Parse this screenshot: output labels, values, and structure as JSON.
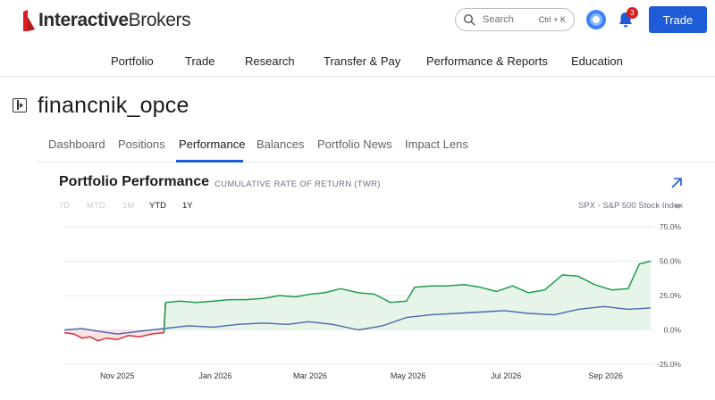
{
  "brand": {
    "name_bold": "Interactive",
    "name_regular": "Brokers",
    "accent_color": "#d81e1e"
  },
  "search": {
    "placeholder": "Search",
    "shortcut": "Ctrl + K"
  },
  "notifications": {
    "count": "3"
  },
  "header": {
    "trade_label": "Trade",
    "trade_color": "#1e5bd7"
  },
  "mainnav": {
    "items": [
      {
        "label": "Portfolio"
      },
      {
        "label": "Trade"
      },
      {
        "label": "Research"
      },
      {
        "label": "Transfer & Pay"
      },
      {
        "label": "Performance & Reports"
      },
      {
        "label": "Education"
      }
    ]
  },
  "account": {
    "title": "financnik_opce"
  },
  "subtabs": {
    "items": [
      {
        "label": "Dashboard",
        "active": false
      },
      {
        "label": "Positions",
        "active": false
      },
      {
        "label": "Performance",
        "active": true
      },
      {
        "label": "Balances",
        "active": false
      },
      {
        "label": "Portfolio News",
        "active": false
      },
      {
        "label": "Impact Lens",
        "active": false
      }
    ]
  },
  "card": {
    "title": "Portfolio Performance",
    "subtitle": "CUMULATIVE RATE OF RETURN (TWR)",
    "ranges": [
      {
        "label": "7D",
        "state": "disabled"
      },
      {
        "label": "MTD",
        "state": "disabled"
      },
      {
        "label": "1M",
        "state": "disabled"
      },
      {
        "label": "YTD",
        "state": "enabled"
      },
      {
        "label": "1Y",
        "state": "selected"
      }
    ],
    "benchmark": "SPX - S&P 500 Stock Index"
  },
  "chart_data": {
    "type": "line",
    "ylim": [
      -25,
      75
    ],
    "yticks": [
      "75.0%",
      "50.0%",
      "25.0%",
      "0.0%",
      "-25.0%"
    ],
    "ytick_values": [
      75,
      50,
      25,
      0,
      -25
    ],
    "xticks": [
      "Nov 2025",
      "Jan 2026",
      "Mar 2026",
      "May 2026",
      "Jul 2026",
      "Sep 2026"
    ],
    "x_range": [
      "2025-09-29",
      "2026-09-29"
    ],
    "xtick_dates": [
      "2025-11-01",
      "2026-01-01",
      "2026-03-01",
      "2026-05-01",
      "2026-07-01",
      "2026-09-01"
    ],
    "grid": true,
    "colors": {
      "portfolio_up": "#1f9d4c",
      "portfolio_down": "#d9303b",
      "benchmark": "#4a68a8",
      "fill_up": "#e6f4ea",
      "fill_down": "#fbe3e5"
    },
    "series": [
      {
        "role": "portfolio",
        "points": [
          [
            "2025-09-29",
            -2
          ],
          [
            "2025-10-05",
            -3
          ],
          [
            "2025-10-10",
            -6
          ],
          [
            "2025-10-15",
            -5
          ],
          [
            "2025-10-20",
            -8
          ],
          [
            "2025-10-25",
            -6
          ],
          [
            "2025-11-01",
            -7
          ],
          [
            "2025-11-08",
            -4
          ],
          [
            "2025-11-15",
            -5
          ],
          [
            "2025-11-22",
            -3
          ],
          [
            "2025-11-30",
            -2
          ],
          [
            "2025-12-01",
            20
          ],
          [
            "2025-12-10",
            21
          ],
          [
            "2025-12-20",
            20
          ],
          [
            "2025-12-31",
            21
          ],
          [
            "2026-01-10",
            22
          ],
          [
            "2026-01-20",
            22
          ],
          [
            "2026-01-31",
            23
          ],
          [
            "2026-02-10",
            25
          ],
          [
            "2026-02-20",
            24
          ],
          [
            "2026-03-01",
            26
          ],
          [
            "2026-03-10",
            27
          ],
          [
            "2026-03-20",
            30
          ],
          [
            "2026-03-31",
            27
          ],
          [
            "2026-04-10",
            26
          ],
          [
            "2026-04-20",
            20
          ],
          [
            "2026-04-30",
            21
          ],
          [
            "2026-05-05",
            31
          ],
          [
            "2026-05-15",
            32
          ],
          [
            "2026-05-25",
            32
          ],
          [
            "2026-06-05",
            33
          ],
          [
            "2026-06-15",
            31
          ],
          [
            "2026-06-25",
            28
          ],
          [
            "2026-07-05",
            32
          ],
          [
            "2026-07-15",
            27
          ],
          [
            "2026-07-25",
            29
          ],
          [
            "2026-08-05",
            40
          ],
          [
            "2026-08-15",
            39
          ],
          [
            "2026-08-25",
            33
          ],
          [
            "2026-09-05",
            29
          ],
          [
            "2026-09-15",
            30
          ],
          [
            "2026-09-22",
            48
          ],
          [
            "2026-09-29",
            50
          ]
        ]
      },
      {
        "role": "benchmark",
        "points": [
          [
            "2025-09-29",
            0
          ],
          [
            "2025-10-10",
            1
          ],
          [
            "2025-10-20",
            -1
          ],
          [
            "2025-11-01",
            -3
          ],
          [
            "2025-11-15",
            -1
          ],
          [
            "2025-11-30",
            1
          ],
          [
            "2025-12-15",
            3
          ],
          [
            "2025-12-31",
            2
          ],
          [
            "2026-01-15",
            4
          ],
          [
            "2026-01-31",
            5
          ],
          [
            "2026-02-15",
            4
          ],
          [
            "2026-02-28",
            6
          ],
          [
            "2026-03-15",
            4
          ],
          [
            "2026-03-31",
            0
          ],
          [
            "2026-04-15",
            3
          ],
          [
            "2026-04-30",
            9
          ],
          [
            "2026-05-15",
            11
          ],
          [
            "2026-05-31",
            12
          ],
          [
            "2026-06-15",
            13
          ],
          [
            "2026-06-30",
            14
          ],
          [
            "2026-07-15",
            12
          ],
          [
            "2026-07-31",
            11
          ],
          [
            "2026-08-15",
            15
          ],
          [
            "2026-08-31",
            17
          ],
          [
            "2026-09-15",
            15
          ],
          [
            "2026-09-29",
            16
          ]
        ]
      }
    ]
  }
}
